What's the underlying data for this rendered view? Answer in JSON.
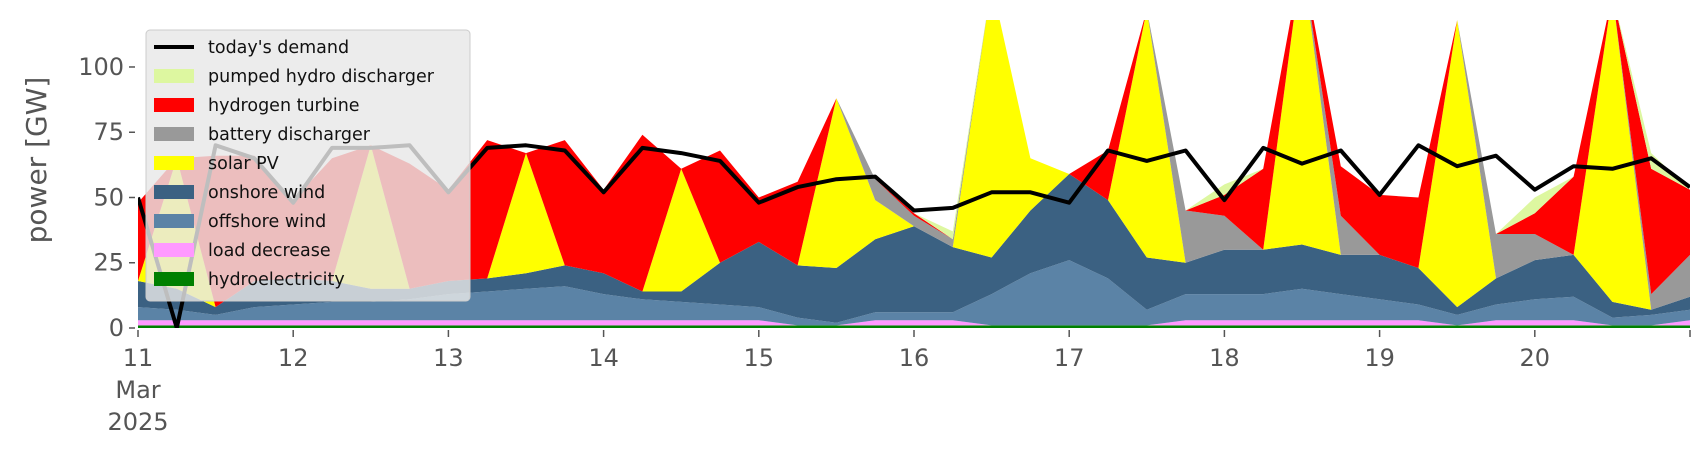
{
  "chart_data": {
    "type": "area",
    "ylabel": "power [GW]",
    "xlim": [
      11,
      21
    ],
    "ylim": [
      0,
      118
    ],
    "y_ticks": [
      0,
      25,
      50,
      75,
      100
    ],
    "x_ticks": [
      {
        "value": 11,
        "lines": [
          "11",
          "Mar",
          "2025"
        ]
      },
      {
        "value": 12,
        "lines": [
          "12"
        ]
      },
      {
        "value": 13,
        "lines": [
          "13"
        ]
      },
      {
        "value": 14,
        "lines": [
          "14"
        ]
      },
      {
        "value": 15,
        "lines": [
          "15"
        ]
      },
      {
        "value": 16,
        "lines": [
          "16"
        ]
      },
      {
        "value": 17,
        "lines": [
          "17"
        ]
      },
      {
        "value": 18,
        "lines": [
          "18"
        ]
      },
      {
        "value": 19,
        "lines": [
          "19"
        ]
      },
      {
        "value": 20,
        "lines": [
          "20"
        ]
      },
      {
        "value": 21,
        "lines": [
          ""
        ]
      }
    ],
    "legend_position": "top-left",
    "x": [
      11.0,
      11.25,
      11.5,
      11.75,
      12.0,
      12.25,
      12.5,
      12.75,
      13.0,
      13.25,
      13.5,
      13.75,
      14.0,
      14.25,
      14.5,
      14.75,
      15.0,
      15.25,
      15.5,
      15.75,
      16.0,
      16.25,
      16.5,
      16.75,
      17.0,
      17.25,
      17.5,
      17.75,
      18.0,
      18.25,
      18.5,
      18.75,
      19.0,
      19.25,
      19.5,
      19.75,
      20.0,
      20.25,
      20.5,
      20.75,
      21.0
    ],
    "series": [
      {
        "name": "hydroelectricity",
        "color": "#008000",
        "values": [
          1,
          1,
          1,
          1,
          1,
          1,
          1,
          1,
          1,
          1,
          1,
          1,
          1,
          1,
          1,
          1,
          1,
          1,
          1,
          1,
          1,
          1,
          1,
          1,
          1,
          1,
          1,
          1,
          1,
          1,
          1,
          1,
          1,
          1,
          1,
          1,
          1,
          1,
          1,
          1,
          1
        ]
      },
      {
        "name": "load decrease",
        "color": "#ff99ff",
        "values": [
          2,
          2,
          2,
          2,
          2,
          2,
          2,
          2,
          2,
          2,
          2,
          2,
          2,
          2,
          2,
          2,
          2,
          0,
          0,
          2,
          2,
          2,
          0,
          0,
          0,
          0,
          0,
          2,
          2,
          2,
          2,
          2,
          2,
          2,
          0,
          2,
          2,
          2,
          0,
          0,
          2
        ]
      },
      {
        "name": "offshore wind",
        "color": "#5b83a6",
        "values": [
          5,
          4,
          2,
          5,
          6,
          7,
          7,
          8,
          10,
          11,
          12,
          13,
          10,
          8,
          7,
          6,
          5,
          3,
          1,
          3,
          3,
          3,
          12,
          20,
          25,
          18,
          6,
          10,
          10,
          10,
          12,
          10,
          8,
          6,
          4,
          6,
          8,
          9,
          3,
          4,
          4
        ]
      },
      {
        "name": "onshore wind",
        "color": "#3b6182",
        "values": [
          10,
          8,
          3,
          10,
          10,
          8,
          5,
          4,
          5,
          5,
          6,
          8,
          8,
          3,
          4,
          16,
          25,
          20,
          21,
          28,
          33,
          25,
          14,
          24,
          33,
          30,
          20,
          12,
          17,
          17,
          17,
          15,
          17,
          14,
          3,
          10,
          15,
          16,
          6,
          2,
          5
        ]
      },
      {
        "name": "solar PV",
        "color": "#ffff00",
        "values": [
          0,
          50,
          0,
          0,
          0,
          0,
          55,
          0,
          0,
          0,
          46,
          0,
          0,
          0,
          47,
          0,
          0,
          0,
          65,
          15,
          0,
          0,
          105,
          20,
          0,
          0,
          95,
          0,
          0,
          0,
          110,
          0,
          0,
          0,
          110,
          0,
          0,
          0,
          118,
          0,
          0
        ]
      },
      {
        "name": "battery discharger",
        "color": "#999999",
        "values": [
          0,
          0,
          0,
          0,
          0,
          0,
          0,
          0,
          0,
          0,
          0,
          0,
          0,
          0,
          0,
          0,
          0,
          0,
          0,
          8,
          4,
          3,
          0,
          0,
          0,
          0,
          0,
          20,
          13,
          0,
          0,
          15,
          0,
          0,
          0,
          17,
          10,
          0,
          0,
          6,
          16
        ]
      },
      {
        "name": "hydrogen turbine",
        "color": "#ff0000",
        "values": [
          30,
          0,
          58,
          48,
          30,
          47,
          0,
          48,
          35,
          53,
          0,
          48,
          32,
          60,
          0,
          43,
          17,
          32,
          0,
          0,
          1,
          0,
          0,
          0,
          0,
          19,
          0,
          0,
          8,
          31,
          0,
          19,
          23,
          27,
          0,
          0,
          8,
          30,
          0,
          48,
          25
        ]
      },
      {
        "name": "pumped hydro discharger",
        "color": "#ddf7a0",
        "values": [
          0,
          0,
          0,
          0,
          0,
          0,
          0,
          0,
          0,
          0,
          0,
          0,
          0,
          0,
          0,
          0,
          0,
          0,
          0,
          0,
          0,
          3,
          0,
          0,
          0,
          0,
          0,
          0,
          4,
          0,
          0,
          0,
          0,
          0,
          0,
          0,
          6,
          0,
          0,
          6,
          0
        ]
      }
    ],
    "demand": {
      "name": "today's demand",
      "color": "#000000",
      "values": [
        50,
        0,
        70,
        65,
        48,
        69,
        69,
        70,
        52,
        69,
        70,
        68,
        52,
        69,
        67,
        64,
        48,
        54,
        57,
        58,
        45,
        46,
        52,
        52,
        48,
        68,
        64,
        68,
        49,
        69,
        63,
        68,
        51,
        70,
        62,
        66,
        53,
        62,
        61,
        65,
        54
      ]
    }
  },
  "legend": [
    {
      "label": "today's demand",
      "kind": "line",
      "color": "#000000"
    },
    {
      "label": "pumped hydro discharger",
      "kind": "patch",
      "color": "#ddf7a0"
    },
    {
      "label": "hydrogen turbine",
      "kind": "patch",
      "color": "#ff0000"
    },
    {
      "label": "battery discharger",
      "kind": "patch",
      "color": "#999999"
    },
    {
      "label": "solar PV",
      "kind": "patch",
      "color": "#ffff00"
    },
    {
      "label": "onshore wind",
      "kind": "patch",
      "color": "#3b6182"
    },
    {
      "label": "offshore wind",
      "kind": "patch",
      "color": "#5b83a6"
    },
    {
      "label": "load decrease",
      "kind": "patch",
      "color": "#ff99ff"
    },
    {
      "label": "hydroelectricity",
      "kind": "patch",
      "color": "#008000"
    }
  ]
}
